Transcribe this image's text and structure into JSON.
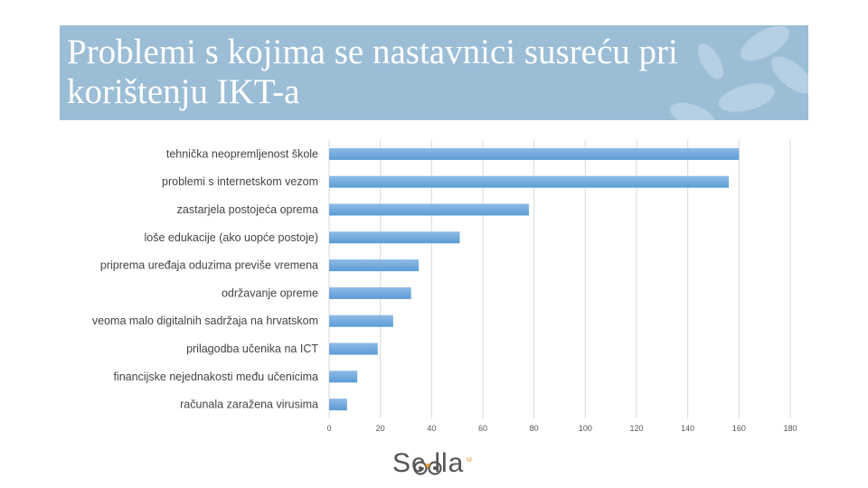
{
  "slide": {
    "title": "Problemi s kojima se nastavnici susreću pri korištenju IKT-a"
  },
  "chart_data": {
    "type": "bar",
    "orientation": "horizontal",
    "categories": [
      "tehnička neopremljenost škole",
      "problemi s internetskom vezom",
      "zastarjela postojeća oprema",
      "loše edukacije (ako uopće postoje)",
      "priprema uređaja oduzima previše vremena",
      "održavanje opreme",
      "veoma malo digitalnih sadržaja na hrvatskom",
      "prilagodba učenika na ICT",
      "financijske nejednakosti među učenicima",
      "računala zaražena virusima"
    ],
    "values": [
      160,
      156,
      78,
      51,
      35,
      32,
      25,
      19,
      11,
      7
    ],
    "xlim": [
      0,
      180
    ],
    "ticks": [
      "0",
      "20",
      "40",
      "60",
      "80",
      "100",
      "120",
      "140",
      "160",
      "180"
    ],
    "grid": true,
    "colors": {
      "bar": "#5b9bd5",
      "bar_top": "#8fbbe6",
      "grid": "#d9d9d9"
    }
  },
  "logo": {
    "name": "Scolla",
    "text": "Sc  lla",
    "mark": "M",
    "accent": "#e8a33d"
  }
}
